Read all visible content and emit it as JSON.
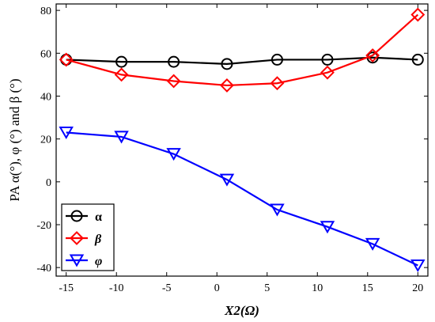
{
  "chart_data": {
    "type": "line",
    "xlabel": "X2(Ω)",
    "ylabel": "PA α(°), φ (°) and β (°)",
    "xlim": [
      -16,
      21
    ],
    "ylim": [
      -44,
      83
    ],
    "xticks": [
      -15,
      -10,
      -5,
      0,
      5,
      10,
      15,
      20
    ],
    "yticks": [
      -40,
      -20,
      0,
      20,
      40,
      60,
      80
    ],
    "x": [
      -15,
      -9.5,
      -4.3,
      1,
      6,
      11,
      15.5,
      20
    ],
    "grid": false,
    "legend_position": "bottom-left",
    "series": [
      {
        "name": "α",
        "color": "#000000",
        "marker": "circle",
        "values": [
          57,
          56,
          56,
          55,
          57,
          57,
          58,
          57
        ]
      },
      {
        "name": "β",
        "color": "#ff0000",
        "marker": "diamond",
        "values": [
          57,
          50,
          47,
          45,
          46,
          51,
          59,
          78
        ]
      },
      {
        "name": "φ",
        "color": "#0000ff",
        "marker": "triangle-down",
        "values": [
          23,
          21,
          13,
          1,
          -13,
          -21,
          -29,
          -39
        ]
      }
    ]
  }
}
